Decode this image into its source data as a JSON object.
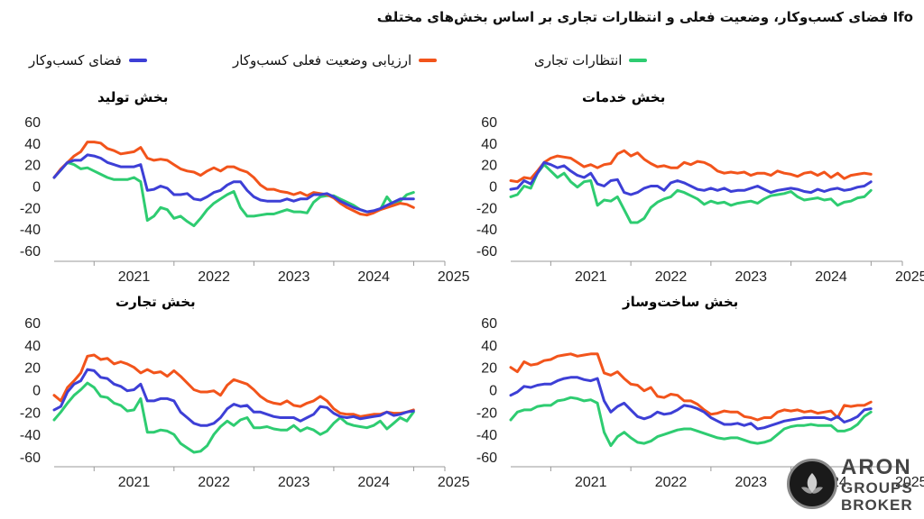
{
  "title": "Ifo فضای کسب‌وکار، وضعیت فعلی و انتظارات تجاری بر اساس بخش‌های مختلف",
  "legend": [
    {
      "label": "فضای کسب‌وکار",
      "color": "#3d3fd6"
    },
    {
      "label": "ارزیابی وضعیت فعلی کسب‌وکار",
      "color": "#f2541b"
    },
    {
      "label": "انتظارات تجاری",
      "color": "#2ecc71"
    }
  ],
  "colors": {
    "business": "#3d3fd6",
    "current": "#f2541b",
    "expectations": "#2ecc71"
  },
  "chart_data": [
    {
      "type": "line",
      "title": "بخش تولید",
      "x_start": 2020.5,
      "x_step": 0.0833,
      "xlim": [
        2020.5,
        2025.3
      ],
      "x_ticks": [
        "2021",
        "2022",
        "2023",
        "2024",
        "2025"
      ],
      "y_ticks": [
        "60",
        "40",
        "20",
        "0",
        "-20",
        "-40",
        "-60"
      ],
      "ylim": [
        -60,
        60
      ],
      "series": [
        {
          "name": "فضای کسب‌وکار",
          "key": "business",
          "values": [
            8,
            15,
            22,
            24,
            24,
            29,
            28,
            26,
            22,
            20,
            18,
            18,
            18,
            20,
            -4,
            -3,
            0,
            -2,
            -8,
            -8,
            -7,
            -12,
            -13,
            -10,
            -6,
            -4,
            1,
            4,
            4,
            -4,
            -10,
            -13,
            -14,
            -14,
            -14,
            -12,
            -14,
            -12,
            -12,
            -8,
            -8,
            -7,
            -10,
            -14,
            -17,
            -20,
            -22,
            -24,
            -23,
            -21,
            -18,
            -15,
            -12,
            -12,
            -12
          ]
        },
        {
          "name": "ارزیابی وضعیت فعلی کسب‌وکار",
          "key": "current",
          "values": [
            8,
            16,
            22,
            28,
            32,
            41,
            41,
            40,
            35,
            33,
            30,
            31,
            32,
            36,
            26,
            24,
            25,
            24,
            20,
            16,
            14,
            13,
            10,
            14,
            17,
            14,
            18,
            18,
            15,
            13,
            8,
            1,
            -3,
            -3,
            -5,
            -6,
            -8,
            -6,
            -9,
            -6,
            -7,
            -8,
            -11,
            -16,
            -20,
            -23,
            -26,
            -27,
            -25,
            -22,
            -20,
            -18,
            -16,
            -17,
            -20
          ]
        },
        {
          "name": "انتظارات تجاری",
          "key": "expectations",
          "values": [
            8,
            15,
            22,
            20,
            16,
            17,
            14,
            11,
            8,
            6,
            6,
            6,
            8,
            4,
            -32,
            -28,
            -20,
            -22,
            -30,
            -28,
            -33,
            -37,
            -30,
            -22,
            -16,
            -12,
            -8,
            -5,
            -20,
            -28,
            -28,
            -27,
            -26,
            -26,
            -24,
            -22,
            -24,
            -24,
            -25,
            -15,
            -10,
            -9,
            -9,
            -12,
            -15,
            -18,
            -22,
            -24,
            -24,
            -22,
            -10,
            -18,
            -14,
            -8,
            -6
          ]
        }
      ]
    },
    {
      "type": "line",
      "title": "بخش خدمات",
      "x_start": 2020.5,
      "x_step": 0.0833,
      "xlim": [
        2020.5,
        2025.3
      ],
      "x_ticks": [
        "2021",
        "2022",
        "2023",
        "2024",
        "2025"
      ],
      "y_ticks": [
        "60",
        "40",
        "20",
        "0",
        "-20",
        "-40",
        "-60"
      ],
      "ylim": [
        -60,
        60
      ],
      "series": [
        {
          "name": "فضای کسب‌وکار",
          "key": "business",
          "values": [
            -3,
            -2,
            5,
            2,
            12,
            22,
            20,
            17,
            19,
            14,
            10,
            8,
            12,
            2,
            0,
            5,
            6,
            -6,
            -8,
            -6,
            -2,
            0,
            0,
            -4,
            3,
            5,
            3,
            0,
            -3,
            -4,
            -2,
            -4,
            -2,
            -5,
            -4,
            -4,
            -2,
            0,
            -3,
            -6,
            -4,
            -3,
            -2,
            -3,
            -5,
            -6,
            -3,
            -5,
            -3,
            -2,
            -4,
            -3,
            -1,
            0,
            4
          ]
        },
        {
          "name": "ارزیابی وضعیت فعلی کسب‌وکار",
          "key": "current",
          "values": [
            5,
            4,
            8,
            7,
            14,
            22,
            26,
            28,
            27,
            26,
            22,
            18,
            20,
            17,
            20,
            21,
            30,
            33,
            28,
            31,
            25,
            21,
            18,
            19,
            17,
            17,
            22,
            20,
            23,
            22,
            19,
            14,
            12,
            13,
            12,
            13,
            10,
            12,
            12,
            10,
            14,
            12,
            11,
            9,
            12,
            13,
            10,
            13,
            8,
            12,
            7,
            10,
            11,
            12,
            11
          ]
        },
        {
          "name": "انتظارات تجاری",
          "key": "expectations",
          "values": [
            -10,
            -8,
            0,
            -2,
            12,
            20,
            14,
            8,
            12,
            4,
            -1,
            4,
            5,
            -18,
            -13,
            -14,
            -10,
            -22,
            -34,
            -34,
            -30,
            -20,
            -15,
            -12,
            -10,
            -4,
            -6,
            -9,
            -12,
            -17,
            -14,
            -16,
            -15,
            -18,
            -16,
            -15,
            -14,
            -16,
            -12,
            -9,
            -8,
            -7,
            -5,
            -10,
            -13,
            -12,
            -11,
            -13,
            -12,
            -18,
            -15,
            -14,
            -11,
            -10,
            -4
          ]
        }
      ]
    },
    {
      "type": "line",
      "title": "بخش تجارت",
      "x_start": 2020.5,
      "x_step": 0.0833,
      "xlim": [
        2020.5,
        2025.3
      ],
      "x_ticks": [
        "2021",
        "2022",
        "2023",
        "2024",
        "2025"
      ],
      "y_ticks": [
        "60",
        "40",
        "20",
        "0",
        "-20",
        "-40",
        "-60"
      ],
      "ylim": [
        -60,
        60
      ],
      "series": [
        {
          "name": "فضای کسب‌وکار",
          "key": "business",
          "values": [
            -18,
            -15,
            -2,
            5,
            8,
            18,
            17,
            11,
            10,
            5,
            3,
            -1,
            0,
            5,
            -10,
            -10,
            -8,
            -8,
            -10,
            -20,
            -25,
            -30,
            -32,
            -32,
            -30,
            -25,
            -17,
            -13,
            -15,
            -14,
            -20,
            -20,
            -22,
            -24,
            -25,
            -25,
            -25,
            -28,
            -25,
            -22,
            -15,
            -16,
            -21,
            -24,
            -25,
            -24,
            -26,
            -25,
            -24,
            -23,
            -20,
            -23,
            -22,
            -20,
            -19
          ]
        },
        {
          "name": "ارزیابی وضعیت فعلی کسب‌وکار",
          "key": "current",
          "values": [
            -5,
            -10,
            2,
            8,
            15,
            30,
            31,
            27,
            28,
            23,
            25,
            23,
            20,
            15,
            18,
            15,
            16,
            12,
            17,
            12,
            6,
            0,
            -2,
            -2,
            -1,
            -5,
            4,
            9,
            7,
            5,
            0,
            -6,
            -10,
            -12,
            -13,
            -10,
            -14,
            -15,
            -12,
            -10,
            -6,
            -10,
            -17,
            -21,
            -22,
            -22,
            -24,
            -23,
            -22,
            -22,
            -20,
            -21,
            -21,
            -20,
            -18
          ]
        },
        {
          "name": "انتظارات تجاری",
          "key": "expectations",
          "values": [
            -27,
            -20,
            -12,
            -5,
            0,
            6,
            2,
            -6,
            -7,
            -12,
            -14,
            -19,
            -18,
            -8,
            -38,
            -38,
            -36,
            -37,
            -40,
            -48,
            -52,
            -56,
            -55,
            -50,
            -40,
            -33,
            -28,
            -32,
            -27,
            -25,
            -34,
            -34,
            -33,
            -35,
            -36,
            -36,
            -32,
            -37,
            -34,
            -36,
            -40,
            -37,
            -30,
            -25,
            -30,
            -32,
            -33,
            -34,
            -32,
            -28,
            -35,
            -30,
            -25,
            -28,
            -20
          ]
        }
      ]
    },
    {
      "type": "line",
      "title": "بخش ساخت‌وساز",
      "x_start": 2020.5,
      "x_step": 0.0833,
      "xlim": [
        2020.5,
        2025.3
      ],
      "x_ticks": [
        "2021",
        "2022",
        "2023",
        "2024",
        "2025"
      ],
      "y_ticks": [
        "60",
        "40",
        "20",
        "0",
        "-20",
        "-40",
        "-60"
      ],
      "ylim": [
        -60,
        60
      ],
      "series": [
        {
          "name": "فضای کسب‌وکار",
          "key": "business",
          "values": [
            -5,
            -2,
            3,
            2,
            4,
            5,
            5,
            8,
            10,
            11,
            11,
            9,
            8,
            10,
            -10,
            -20,
            -15,
            -12,
            -18,
            -24,
            -26,
            -24,
            -20,
            -22,
            -21,
            -18,
            -14,
            -15,
            -17,
            -20,
            -25,
            -28,
            -31,
            -31,
            -30,
            -32,
            -30,
            -35,
            -34,
            -32,
            -30,
            -28,
            -27,
            -26,
            -25,
            -25,
            -25,
            -25,
            -27,
            -24,
            -29,
            -27,
            -24,
            -18,
            -17
          ]
        },
        {
          "name": "ارزیابی وضعیت فعلی کسب‌وکار",
          "key": "current",
          "values": [
            20,
            16,
            25,
            22,
            23,
            26,
            27,
            30,
            31,
            32,
            30,
            31,
            32,
            32,
            15,
            13,
            16,
            10,
            5,
            4,
            -1,
            2,
            -6,
            -7,
            -4,
            -5,
            -10,
            -10,
            -13,
            -18,
            -22,
            -21,
            -19,
            -20,
            -20,
            -24,
            -25,
            -27,
            -25,
            -25,
            -20,
            -18,
            -19,
            -18,
            -20,
            -19,
            -21,
            -20,
            -19,
            -25,
            -14,
            -15,
            -14,
            -14,
            -11
          ]
        },
        {
          "name": "انتظارات تجاری",
          "key": "expectations",
          "values": [
            -27,
            -20,
            -18,
            -18,
            -15,
            -14,
            -14,
            -10,
            -9,
            -7,
            -8,
            -10,
            -9,
            -12,
            -38,
            -50,
            -42,
            -38,
            -43,
            -47,
            -48,
            -46,
            -42,
            -40,
            -38,
            -36,
            -35,
            -35,
            -37,
            -39,
            -41,
            -43,
            -44,
            -43,
            -43,
            -45,
            -47,
            -48,
            -47,
            -45,
            -40,
            -35,
            -33,
            -32,
            -32,
            -31,
            -32,
            -32,
            -32,
            -37,
            -37,
            -35,
            -31,
            -24,
            -20
          ]
        }
      ]
    }
  ],
  "logo": {
    "line1": "ARON",
    "line2": "GROUPS",
    "line3": "BROKER"
  }
}
